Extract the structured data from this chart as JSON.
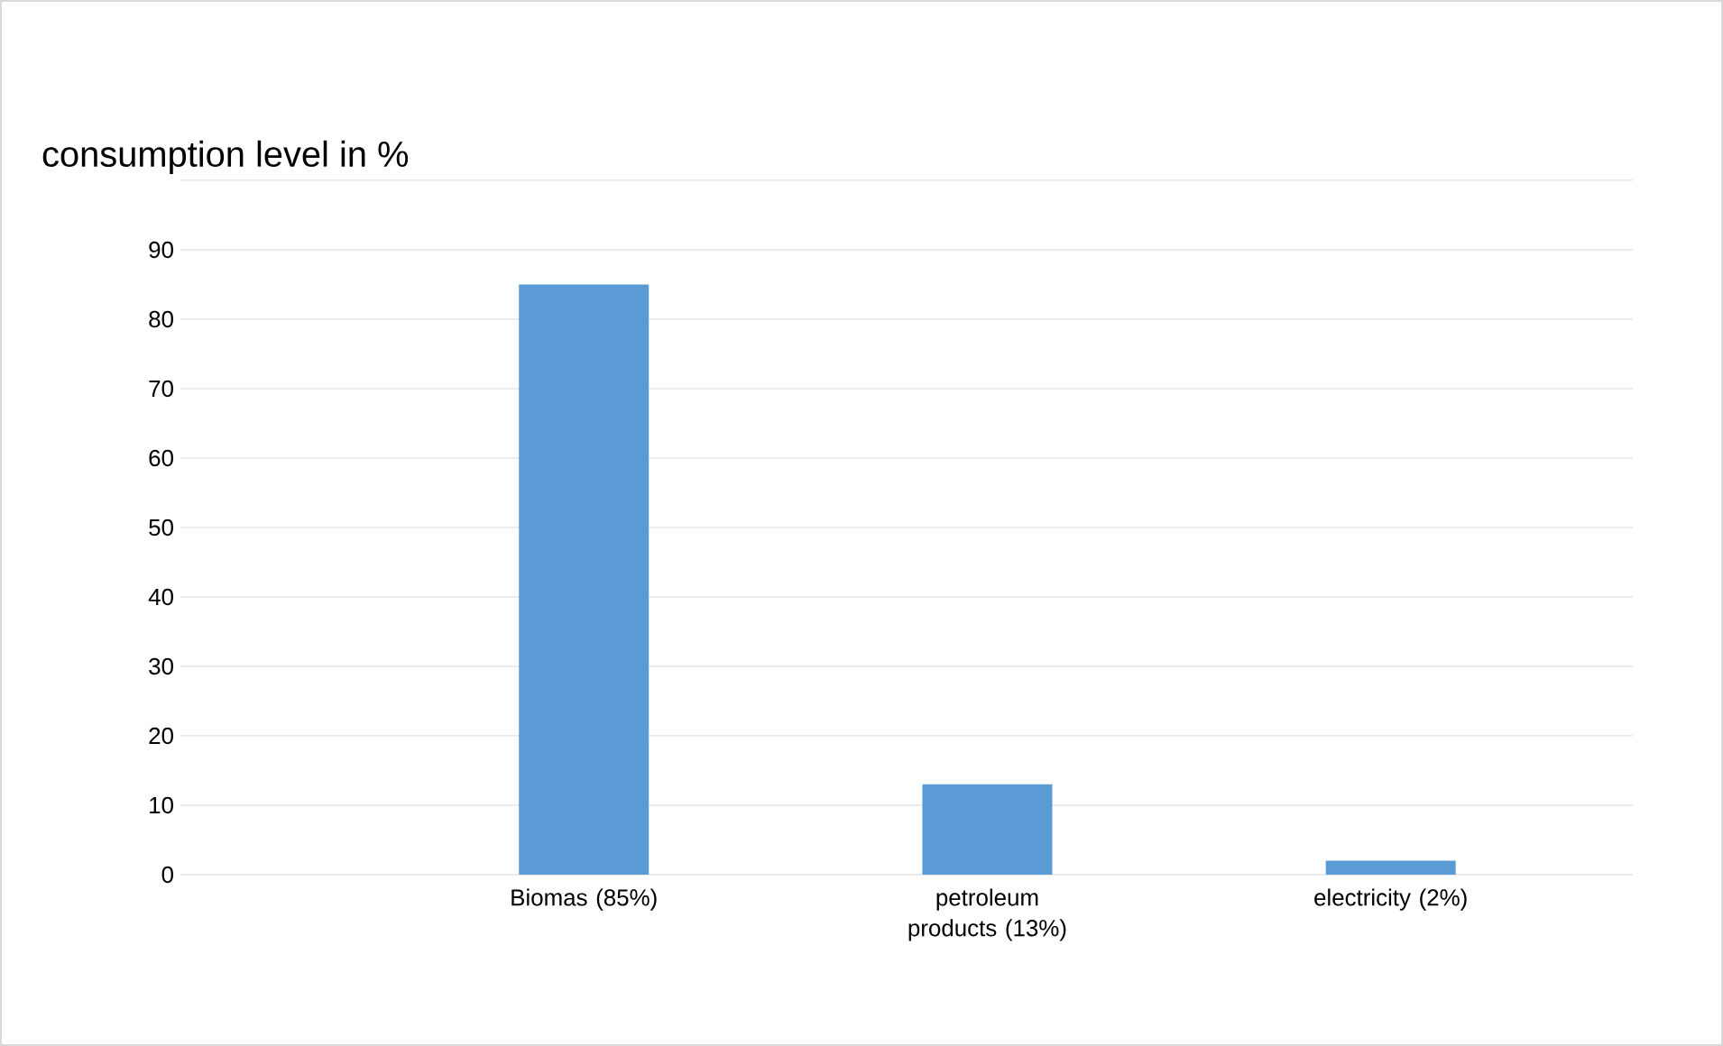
{
  "chart_data": {
    "type": "bar",
    "ylabel": "consumption level in %",
    "categories": [
      "Biomas (85%)",
      "petroleum products (13%)",
      "electricity (2%)"
    ],
    "values": [
      85,
      13,
      2
    ],
    "color": "#5b9bd5",
    "ylim": [
      0,
      100
    ],
    "yticks": [
      0,
      10,
      20,
      30,
      40,
      50,
      60,
      70,
      80,
      90,
      {
        "value": 100,
        "label": null
      }
    ],
    "grid": "y"
  }
}
